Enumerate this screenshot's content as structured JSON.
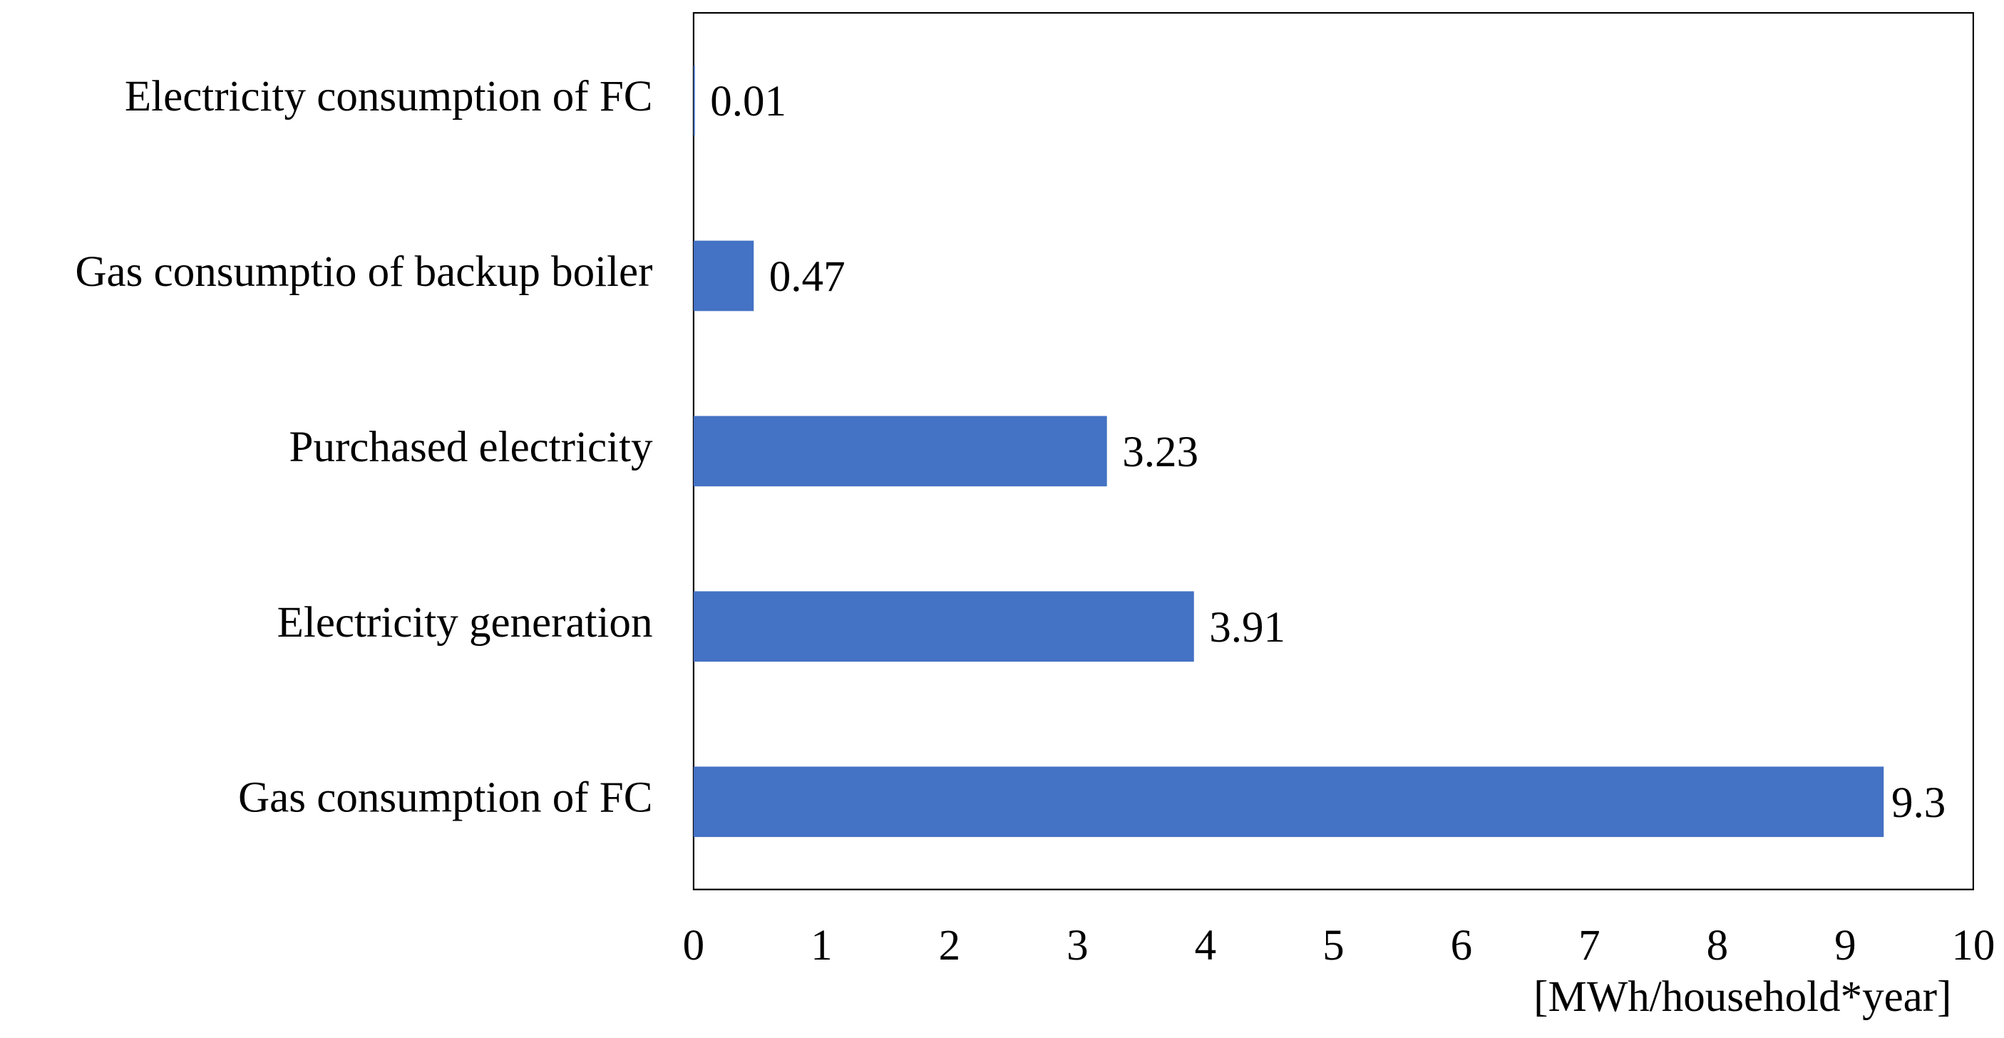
{
  "chart_data": {
    "type": "bar",
    "orientation": "horizontal",
    "categories": [
      "Electricity consumption of FC",
      "Gas consumptio of backup boiler",
      "Purchased electricity",
      "Electricity generation",
      "Gas consumption of FC"
    ],
    "values": [
      0.01,
      0.47,
      3.23,
      3.91,
      9.3
    ],
    "color": "#4472c4",
    "x_label": "[MWh/household*year]",
    "xlim": [
      0,
      10
    ],
    "xticks": [
      0,
      1,
      2,
      3,
      4,
      5,
      6,
      7,
      8,
      9,
      10
    ],
    "grid": false
  }
}
